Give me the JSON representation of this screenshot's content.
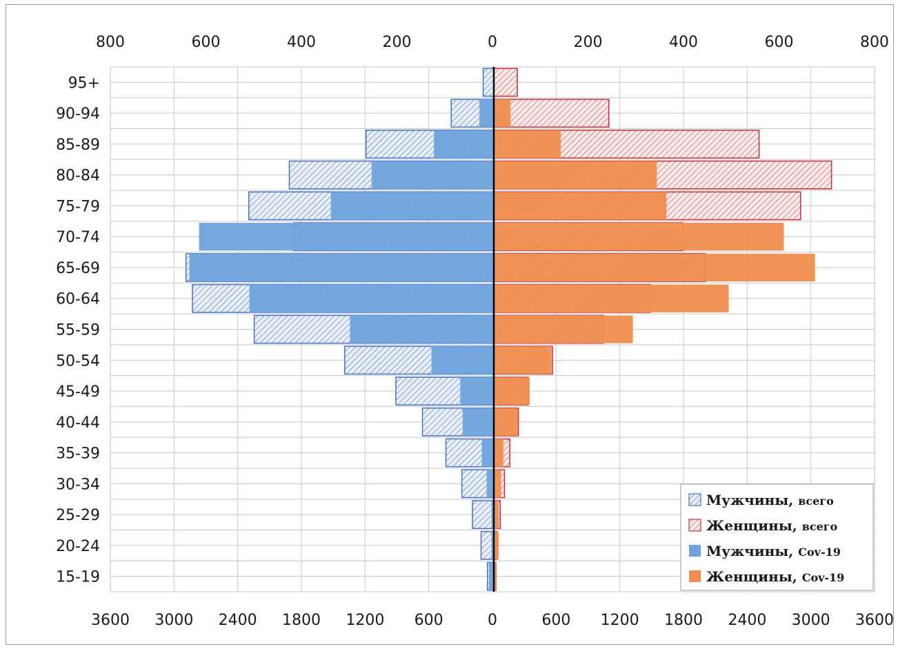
{
  "chart_data": {
    "type": "bar",
    "orientation": "horizontal",
    "layout": "population-pyramid",
    "categories": [
      "15-19",
      "20-24",
      "25-29",
      "30-34",
      "35-39",
      "40-44",
      "45-49",
      "50-54",
      "55-59",
      "60-64",
      "65-69",
      "70-74",
      "75-79",
      "80-84",
      "85-89",
      "90-94",
      "95+"
    ],
    "top_axis": {
      "range": [
        -800,
        800
      ],
      "tick_labels": [
        "800",
        "600",
        "400",
        "200",
        "0",
        "200",
        "400",
        "600",
        "800"
      ]
    },
    "bottom_axis": {
      "range": [
        -3600,
        3600
      ],
      "tick_labels": [
        "3600",
        "3000",
        "2400",
        "1800",
        "1200",
        "600",
        "0",
        "600",
        "1200",
        "1800",
        "2400",
        "3000",
        "3600"
      ]
    },
    "series": [
      {
        "name": "Мужчины, всего",
        "side": "left",
        "axis": "bottom",
        "style": "hatched",
        "color": "#4472c4",
        "values": [
          60,
          120,
          200,
          300,
          450,
          670,
          920,
          1400,
          2250,
          2830,
          2890,
          1880,
          2300,
          1920,
          1200,
          400,
          100
        ]
      },
      {
        "name": "Женщины, всего",
        "side": "right",
        "axis": "bottom",
        "style": "hatched",
        "color": "#c0303a",
        "values": [
          20,
          30,
          60,
          100,
          150,
          230,
          320,
          550,
          1030,
          1470,
          1990,
          1770,
          2880,
          3170,
          2490,
          1080,
          220
        ]
      },
      {
        "name": "Мужчины, Cov-19",
        "side": "left",
        "axis": "top",
        "style": "solid",
        "color": "#6fa3dc",
        "values": [
          10,
          5,
          5,
          15,
          25,
          65,
          70,
          130,
          300,
          510,
          635,
          615,
          340,
          255,
          125,
          30,
          0
        ]
      },
      {
        "name": "Женщины, Cov-19",
        "side": "right",
        "axis": "top",
        "style": "solid",
        "color": "#f08e4f",
        "values": [
          5,
          10,
          10,
          15,
          20,
          50,
          75,
          120,
          290,
          490,
          670,
          605,
          360,
          340,
          140,
          35,
          0
        ]
      }
    ],
    "grid": true,
    "legend_position": "bottom-right"
  }
}
